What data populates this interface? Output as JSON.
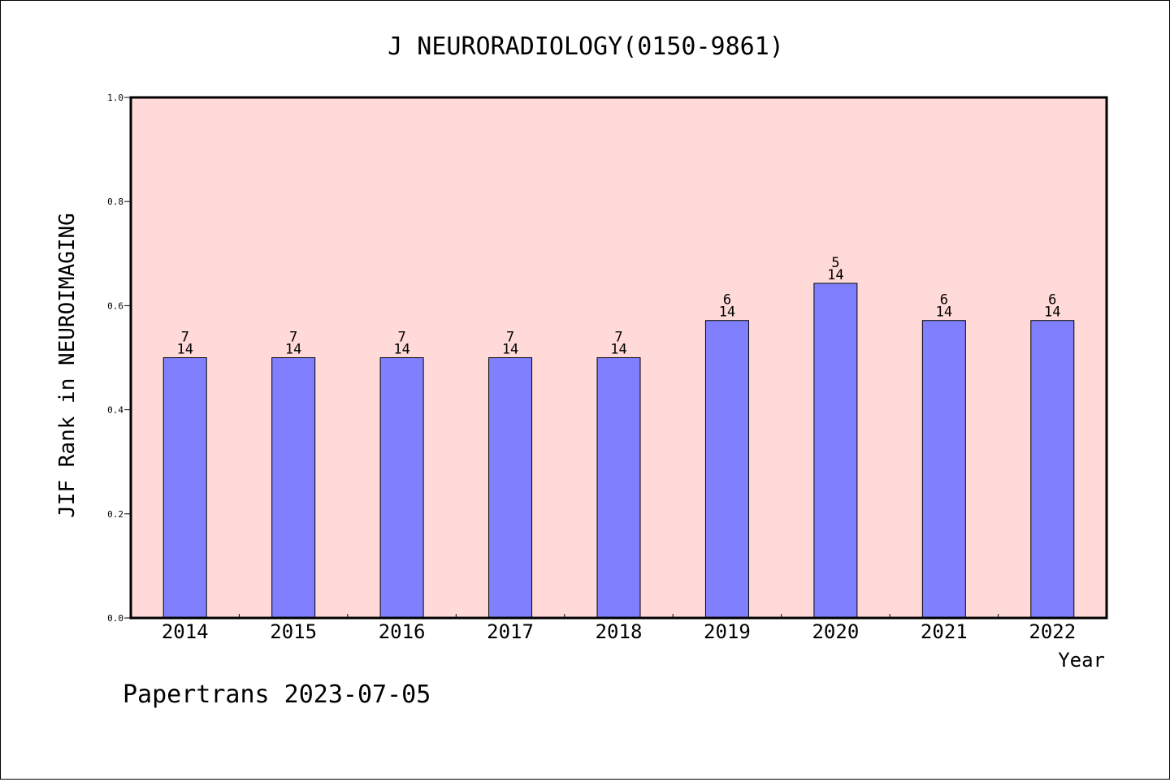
{
  "chart_data": {
    "type": "bar",
    "title": "J NEURORADIOLOGY(0150-9861)",
    "xlabel": "Year",
    "ylabel": "JIF Rank in NEUROIMAGING",
    "categories": [
      "2014",
      "2015",
      "2016",
      "2017",
      "2018",
      "2019",
      "2020",
      "2021",
      "2022"
    ],
    "values": [
      0.5,
      0.5,
      0.5,
      0.5,
      0.5,
      0.5714,
      0.6429,
      0.5714,
      0.5714
    ],
    "ranks": [
      "7",
      "7",
      "7",
      "7",
      "7",
      "6",
      "5",
      "6",
      "6"
    ],
    "totals": [
      "14",
      "14",
      "14",
      "14",
      "14",
      "14",
      "14",
      "14",
      "14"
    ],
    "ylim": [
      0,
      1.0
    ],
    "yticks": [
      "0.0",
      "0.2",
      "0.4",
      "0.6",
      "0.8",
      "1.0"
    ],
    "grid": false,
    "colors": {
      "plot_bg": "#ffdad8",
      "bar": "#8080ff",
      "bar_edge": "#000000"
    }
  },
  "footer": "Papertrans 2023-07-05"
}
